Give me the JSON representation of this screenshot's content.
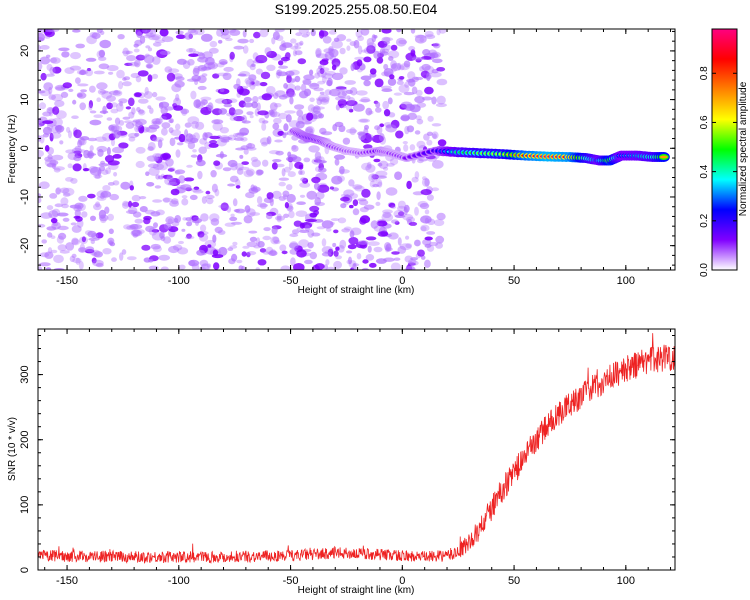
{
  "chart_data": [
    {
      "type": "heatmap",
      "title": "S199.2025.255.08.50.E04",
      "xlabel": "Height of straight line (km)",
      "ylabel": "Frequency (Hz)",
      "xlim": [
        -163,
        122
      ],
      "ylim": [
        -25,
        24.5
      ],
      "xticks": [
        -150,
        -100,
        -50,
        0,
        50,
        100
      ],
      "yticks": [
        -20,
        -10,
        0,
        10,
        20
      ],
      "colorbar": {
        "label": "Normalized spectral amplitude",
        "range": [
          0,
          0.98
        ],
        "ticks": [
          0.0,
          0.2,
          0.4,
          0.6,
          0.8
        ],
        "tick_labels": [
          "0.0",
          "0.2",
          "0.4",
          "0.6",
          "0.8"
        ],
        "colors": [
          "#ffffff",
          "#8000ff",
          "#0000ff",
          "#00ffff",
          "#00ff00",
          "#ffff00",
          "#ff8000",
          "#ff0000",
          "#ff0080"
        ]
      },
      "noise_region": {
        "x_range": [
          -163,
          18
        ],
        "y_range": [
          -25,
          24.5
        ],
        "amplitude_range": [
          0.02,
          0.12
        ]
      },
      "signal_track": [
        {
          "x": -48,
          "y": 3.5,
          "amp": 0.15
        },
        {
          "x": -44,
          "y": 2.5,
          "amp": 0.2
        },
        {
          "x": -40,
          "y": 2.0,
          "amp": 0.22
        },
        {
          "x": -36,
          "y": 1.5,
          "amp": 0.18
        },
        {
          "x": -32,
          "y": 0.5,
          "amp": 0.12
        },
        {
          "x": -25,
          "y": -0.5,
          "amp": 0.1
        },
        {
          "x": -18,
          "y": -1.0,
          "amp": 0.1
        },
        {
          "x": -10,
          "y": -0.5,
          "amp": 0.15
        },
        {
          "x": -5,
          "y": -1.0,
          "amp": 0.12
        },
        {
          "x": 2,
          "y": -2.0,
          "amp": 0.12
        },
        {
          "x": 15,
          "y": -0.5,
          "amp": 0.2
        },
        {
          "x": 25,
          "y": -0.8,
          "amp": 0.45
        },
        {
          "x": 35,
          "y": -1.0,
          "amp": 0.55
        },
        {
          "x": 45,
          "y": -1.2,
          "amp": 0.6
        },
        {
          "x": 55,
          "y": -1.5,
          "amp": 0.85
        },
        {
          "x": 65,
          "y": -1.7,
          "amp": 0.95
        },
        {
          "x": 75,
          "y": -1.8,
          "amp": 0.9
        },
        {
          "x": 82,
          "y": -2.0,
          "amp": 0.6
        },
        {
          "x": 88,
          "y": -2.5,
          "amp": 0.4
        },
        {
          "x": 93,
          "y": -2.5,
          "amp": 0.75
        },
        {
          "x": 98,
          "y": -1.5,
          "amp": 0.35
        },
        {
          "x": 105,
          "y": -1.5,
          "amp": 0.4
        },
        {
          "x": 112,
          "y": -1.8,
          "amp": 0.5
        },
        {
          "x": 118,
          "y": -1.8,
          "amp": 0.75
        }
      ]
    },
    {
      "type": "line",
      "xlabel": "Height of straight line (km)",
      "ylabel": "SNR (10 * v/v)",
      "xlim": [
        -163,
        122
      ],
      "ylim": [
        0,
        370
      ],
      "xticks": [
        -150,
        -100,
        -50,
        0,
        50,
        100
      ],
      "yticks": [
        0,
        100,
        200,
        300
      ],
      "series": [
        {
          "name": "SNR",
          "color": "#ee2222",
          "trend_x": [
            -163,
            -120,
            -80,
            -50,
            -30,
            -10,
            10,
            20,
            25,
            30,
            35,
            40,
            45,
            50,
            55,
            60,
            65,
            70,
            75,
            80,
            85,
            90,
            95,
            100,
            105,
            110,
            115,
            122
          ],
          "trend_y": [
            22,
            20,
            20,
            22,
            26,
            24,
            20,
            22,
            28,
            42,
            65,
            95,
            125,
            150,
            175,
            200,
            222,
            240,
            255,
            267,
            280,
            290,
            300,
            308,
            315,
            322,
            325,
            328
          ],
          "noise_amplitude": [
            [
              -163,
              9
            ],
            [
              20,
              9
            ],
            [
              40,
              20
            ],
            [
              80,
              20
            ],
            [
              122,
              22
            ]
          ]
        }
      ]
    }
  ]
}
